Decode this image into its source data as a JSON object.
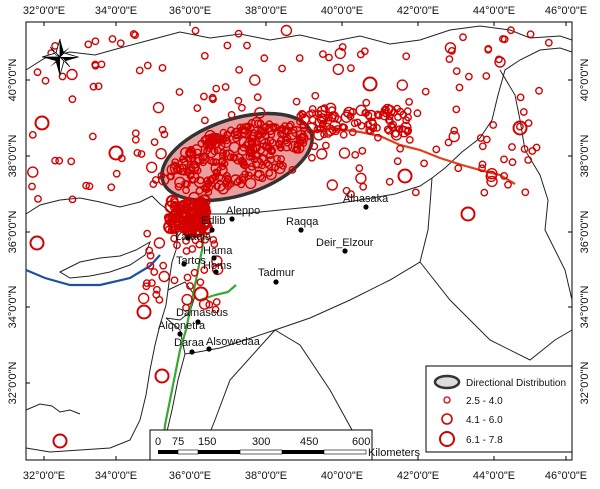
{
  "map": {
    "top_ticks": [
      "32°0'0\"E",
      "34°0'0\"E",
      "36°0'0\"E",
      "38°0'0\"E",
      "40°0'0\"E",
      "42°0'0\"E",
      "44°0'0\"E",
      "46°0'0\"E"
    ],
    "bottom_ticks": [
      "32°0'0\"E",
      "34°0'0\"E",
      "36°0'0\"E",
      "38°0'0\"E",
      "40°0'0\"E",
      "42°0'0\"E",
      "44°0'0\"E",
      "46°0'0\"E"
    ],
    "left_ticks": [
      "40°0'0\"N",
      "38°0'0\"N",
      "36°0'0\"N",
      "34°0'0\"N",
      "32°0'0\"N"
    ],
    "right_ticks": [
      "40°0'0\"N",
      "38°0'0\"N",
      "36°0'0\"N",
      "34°0'0\"N",
      "32°0'0\"N"
    ],
    "cities": [
      {
        "name": "Aleppo"
      },
      {
        "name": "Edlib"
      },
      {
        "name": "Raqqa"
      },
      {
        "name": "Alhasaka"
      },
      {
        "name": "Deir_Elzour"
      },
      {
        "name": "Lataqia"
      },
      {
        "name": "Hama"
      },
      {
        "name": "Tartos"
      },
      {
        "name": "Homs"
      },
      {
        "name": "Tadmur"
      },
      {
        "name": "Damascus"
      },
      {
        "name": "Alqonetra"
      },
      {
        "name": "Daraa"
      },
      {
        "name": "Alsowedaa"
      }
    ],
    "legend": {
      "title": "Directional Distribution",
      "items": [
        "2.5 - 4.0",
        "4.1 - 6.0",
        "6.1 - 7.8"
      ]
    },
    "scale": {
      "labels": [
        "0",
        "75",
        "150",
        "300",
        "450",
        "600"
      ],
      "unit": "Kilometers"
    },
    "colors": {
      "quake": "#d40000",
      "ellipse_fill": "#e8a0a0",
      "ellipse_stroke": "#333333",
      "fault_red": "#e0401a",
      "fault_green": "#39a832",
      "fault_blue": "#1f4fa0",
      "border": "#222222"
    }
  }
}
